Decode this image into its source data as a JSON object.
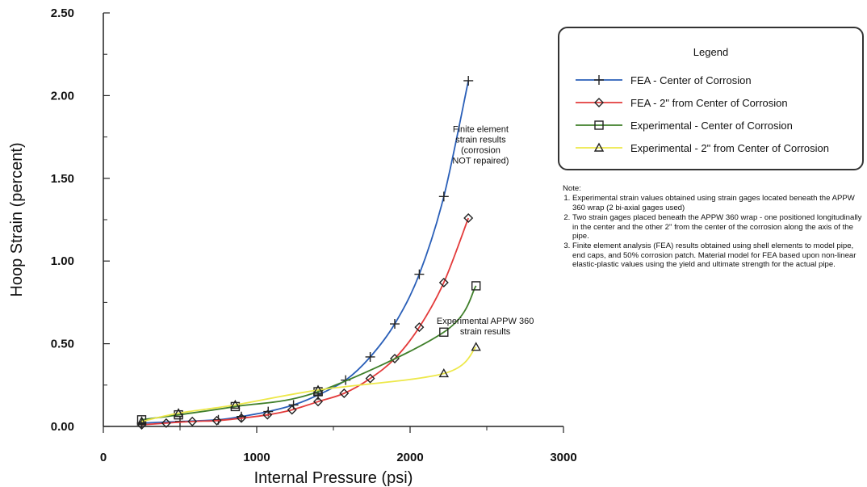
{
  "chart_data": {
    "type": "line",
    "xlabel": "Internal Pressure (psi)",
    "ylabel": "Hoop Strain (percent)",
    "xlim": [
      0,
      3000
    ],
    "ylim": [
      0,
      2.5
    ],
    "x_tick_labels": [
      "0",
      "1000",
      "2000",
      "3000"
    ],
    "y_tick_labels": [
      "0.00",
      "0.50",
      "1.00",
      "1.50",
      "2.00",
      "2.50"
    ],
    "grid": false,
    "legend_position": "top-right",
    "legend_title": "Legend",
    "series": [
      {
        "name": "FEA - Center of Corrosion",
        "color": "#2a5fb8",
        "marker": "plus",
        "x": [
          250,
          500,
          750,
          900,
          1075,
          1240,
          1400,
          1580,
          1740,
          1900,
          2060,
          2220,
          2380
        ],
        "y": [
          0.02,
          0.03,
          0.04,
          0.06,
          0.09,
          0.13,
          0.19,
          0.28,
          0.42,
          0.62,
          0.92,
          1.39,
          2.09
        ]
      },
      {
        "name": "FEA - 2\" from Center of Corrosion",
        "color": "#e33b3b",
        "marker": "diamond",
        "x": [
          250,
          410,
          580,
          740,
          900,
          1070,
          1230,
          1400,
          1570,
          1740,
          1900,
          2060,
          2220,
          2380
        ],
        "y": [
          0.01,
          0.02,
          0.03,
          0.035,
          0.05,
          0.07,
          0.1,
          0.15,
          0.2,
          0.29,
          0.41,
          0.6,
          0.87,
          1.26
        ]
      },
      {
        "name": "Experimental - Center of Corrosion",
        "color": "#3f7f2a",
        "marker": "square",
        "x": [
          250,
          490,
          860,
          1400,
          2220,
          2430
        ],
        "y": [
          0.04,
          0.07,
          0.12,
          0.21,
          0.57,
          0.85
        ]
      },
      {
        "name": "Experimental - 2\" from Center of Corrosion",
        "color": "#ede84a",
        "marker": "triangle",
        "x": [
          250,
          490,
          860,
          1400,
          2220,
          2430
        ],
        "y": [
          0.03,
          0.08,
          0.13,
          0.22,
          0.32,
          0.48
        ]
      }
    ],
    "annotations": [
      {
        "lines": [
          "Finite element",
          "strain results",
          "(corrosion",
          "NOT repaired)"
        ],
        "x": 2460,
        "y": 1.78
      },
      {
        "lines": [
          "Experimental APPW 360",
          "strain results"
        ],
        "x": 2490,
        "y": 0.62
      }
    ]
  },
  "notes": {
    "heading": "Note:",
    "items": [
      "Experimental strain values obtained using strain gages located beneath the APPW 360 wrap (2 bi-axial gages used)",
      "Two strain gages placed beneath the APPW 360 wrap - one positioned longitudinally in the center and the other 2\" from the center of the corrosion along the axis of the pipe.",
      "Finite element analysis (FEA) results obtained using shell elements to model pipe, end caps, and 50% corrosion patch. Material model for FEA based upon non-linear elastic-plastic values using the yield and ultimate strength for the actual pipe."
    ]
  }
}
